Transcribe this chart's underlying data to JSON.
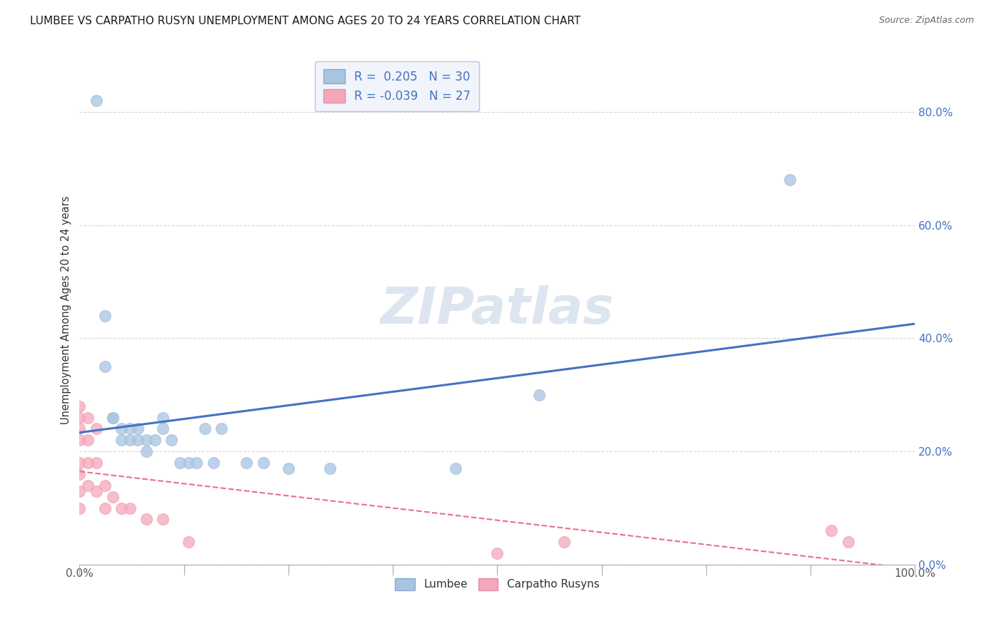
{
  "title": "LUMBEE VS CARPATHO RUSYN UNEMPLOYMENT AMONG AGES 20 TO 24 YEARS CORRELATION CHART",
  "source": "Source: ZipAtlas.com",
  "ylabel": "Unemployment Among Ages 20 to 24 years",
  "lumbee_R": 0.205,
  "lumbee_N": 30,
  "carpatho_R": -0.039,
  "carpatho_N": 27,
  "xlim": [
    0.0,
    1.0
  ],
  "ylim": [
    0.0,
    0.9
  ],
  "yticks": [
    0.0,
    0.2,
    0.4,
    0.6,
    0.8
  ],
  "xtick_left_label": "0.0%",
  "xtick_right_label": "100.0%",
  "lumbee_color": "#a8c4e0",
  "carpatho_color": "#f4a7b9",
  "lumbee_line_color": "#4472c4",
  "carpatho_line_color": "#e8708a",
  "background_color": "#ffffff",
  "grid_color": "#c8c8c8",
  "watermark_color": "#dce5f0",
  "legend_box_color": "#eef2fa",
  "lumbee_scatter_x": [
    0.02,
    0.03,
    0.03,
    0.04,
    0.04,
    0.05,
    0.05,
    0.06,
    0.06,
    0.07,
    0.07,
    0.08,
    0.08,
    0.09,
    0.1,
    0.1,
    0.11,
    0.12,
    0.13,
    0.14,
    0.15,
    0.16,
    0.17,
    0.2,
    0.22,
    0.25,
    0.3,
    0.45,
    0.55,
    0.85
  ],
  "lumbee_scatter_y": [
    0.82,
    0.44,
    0.35,
    0.26,
    0.26,
    0.24,
    0.22,
    0.24,
    0.22,
    0.24,
    0.22,
    0.22,
    0.2,
    0.22,
    0.26,
    0.24,
    0.22,
    0.18,
    0.18,
    0.18,
    0.24,
    0.18,
    0.24,
    0.18,
    0.18,
    0.17,
    0.17,
    0.17,
    0.3,
    0.68
  ],
  "carpatho_scatter_x": [
    0.0,
    0.0,
    0.0,
    0.0,
    0.0,
    0.0,
    0.0,
    0.0,
    0.01,
    0.01,
    0.01,
    0.01,
    0.02,
    0.02,
    0.02,
    0.03,
    0.03,
    0.04,
    0.05,
    0.06,
    0.08,
    0.1,
    0.13,
    0.5,
    0.58,
    0.9,
    0.92
  ],
  "carpatho_scatter_y": [
    0.28,
    0.26,
    0.24,
    0.22,
    0.18,
    0.16,
    0.13,
    0.1,
    0.26,
    0.22,
    0.18,
    0.14,
    0.24,
    0.18,
    0.13,
    0.14,
    0.1,
    0.12,
    0.1,
    0.1,
    0.08,
    0.08,
    0.04,
    0.02,
    0.04,
    0.06,
    0.04
  ]
}
